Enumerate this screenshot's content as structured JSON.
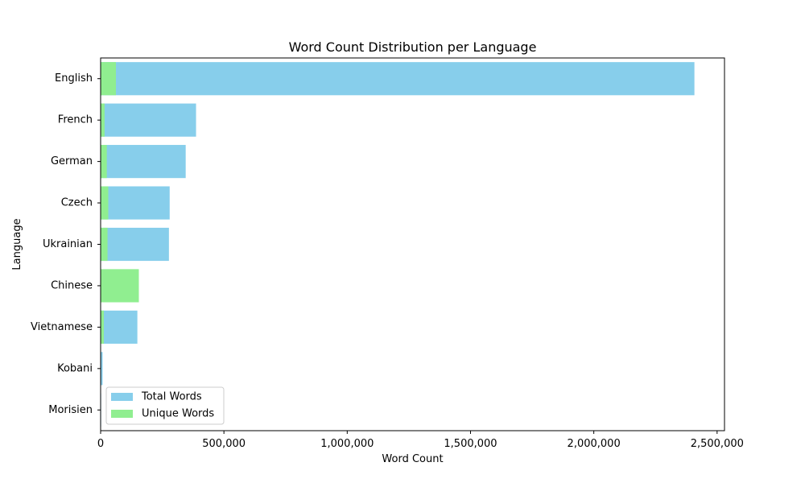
{
  "chart_data": {
    "type": "bar",
    "orientation": "horizontal",
    "title": "Word Count Distribution per Language",
    "xlabel": "Word Count",
    "ylabel": "Language",
    "categories": [
      "English",
      "French",
      "German",
      "Czech",
      "Ukrainian",
      "Chinese",
      "Vietnamese",
      "Kobani",
      "Morisien"
    ],
    "series": [
      {
        "name": "Total Words",
        "color": "#87ceeb",
        "values": [
          2408000,
          387000,
          345000,
          280000,
          277000,
          0,
          149000,
          8000,
          2000
        ]
      },
      {
        "name": "Unique Words",
        "color": "#90ee90",
        "values": [
          62000,
          16000,
          25000,
          31000,
          28000,
          155000,
          13000,
          1500,
          500
        ]
      }
    ],
    "xlim": [
      0,
      2530000
    ],
    "xticks": [
      0,
      500000,
      1000000,
      1500000,
      2000000,
      2500000
    ],
    "xtick_labels": [
      "0",
      "500,000",
      "1,000,000",
      "1,500,000",
      "2,000,000",
      "2,500,000"
    ],
    "legend_position": "lower-left",
    "grid": false,
    "overlay": true
  }
}
